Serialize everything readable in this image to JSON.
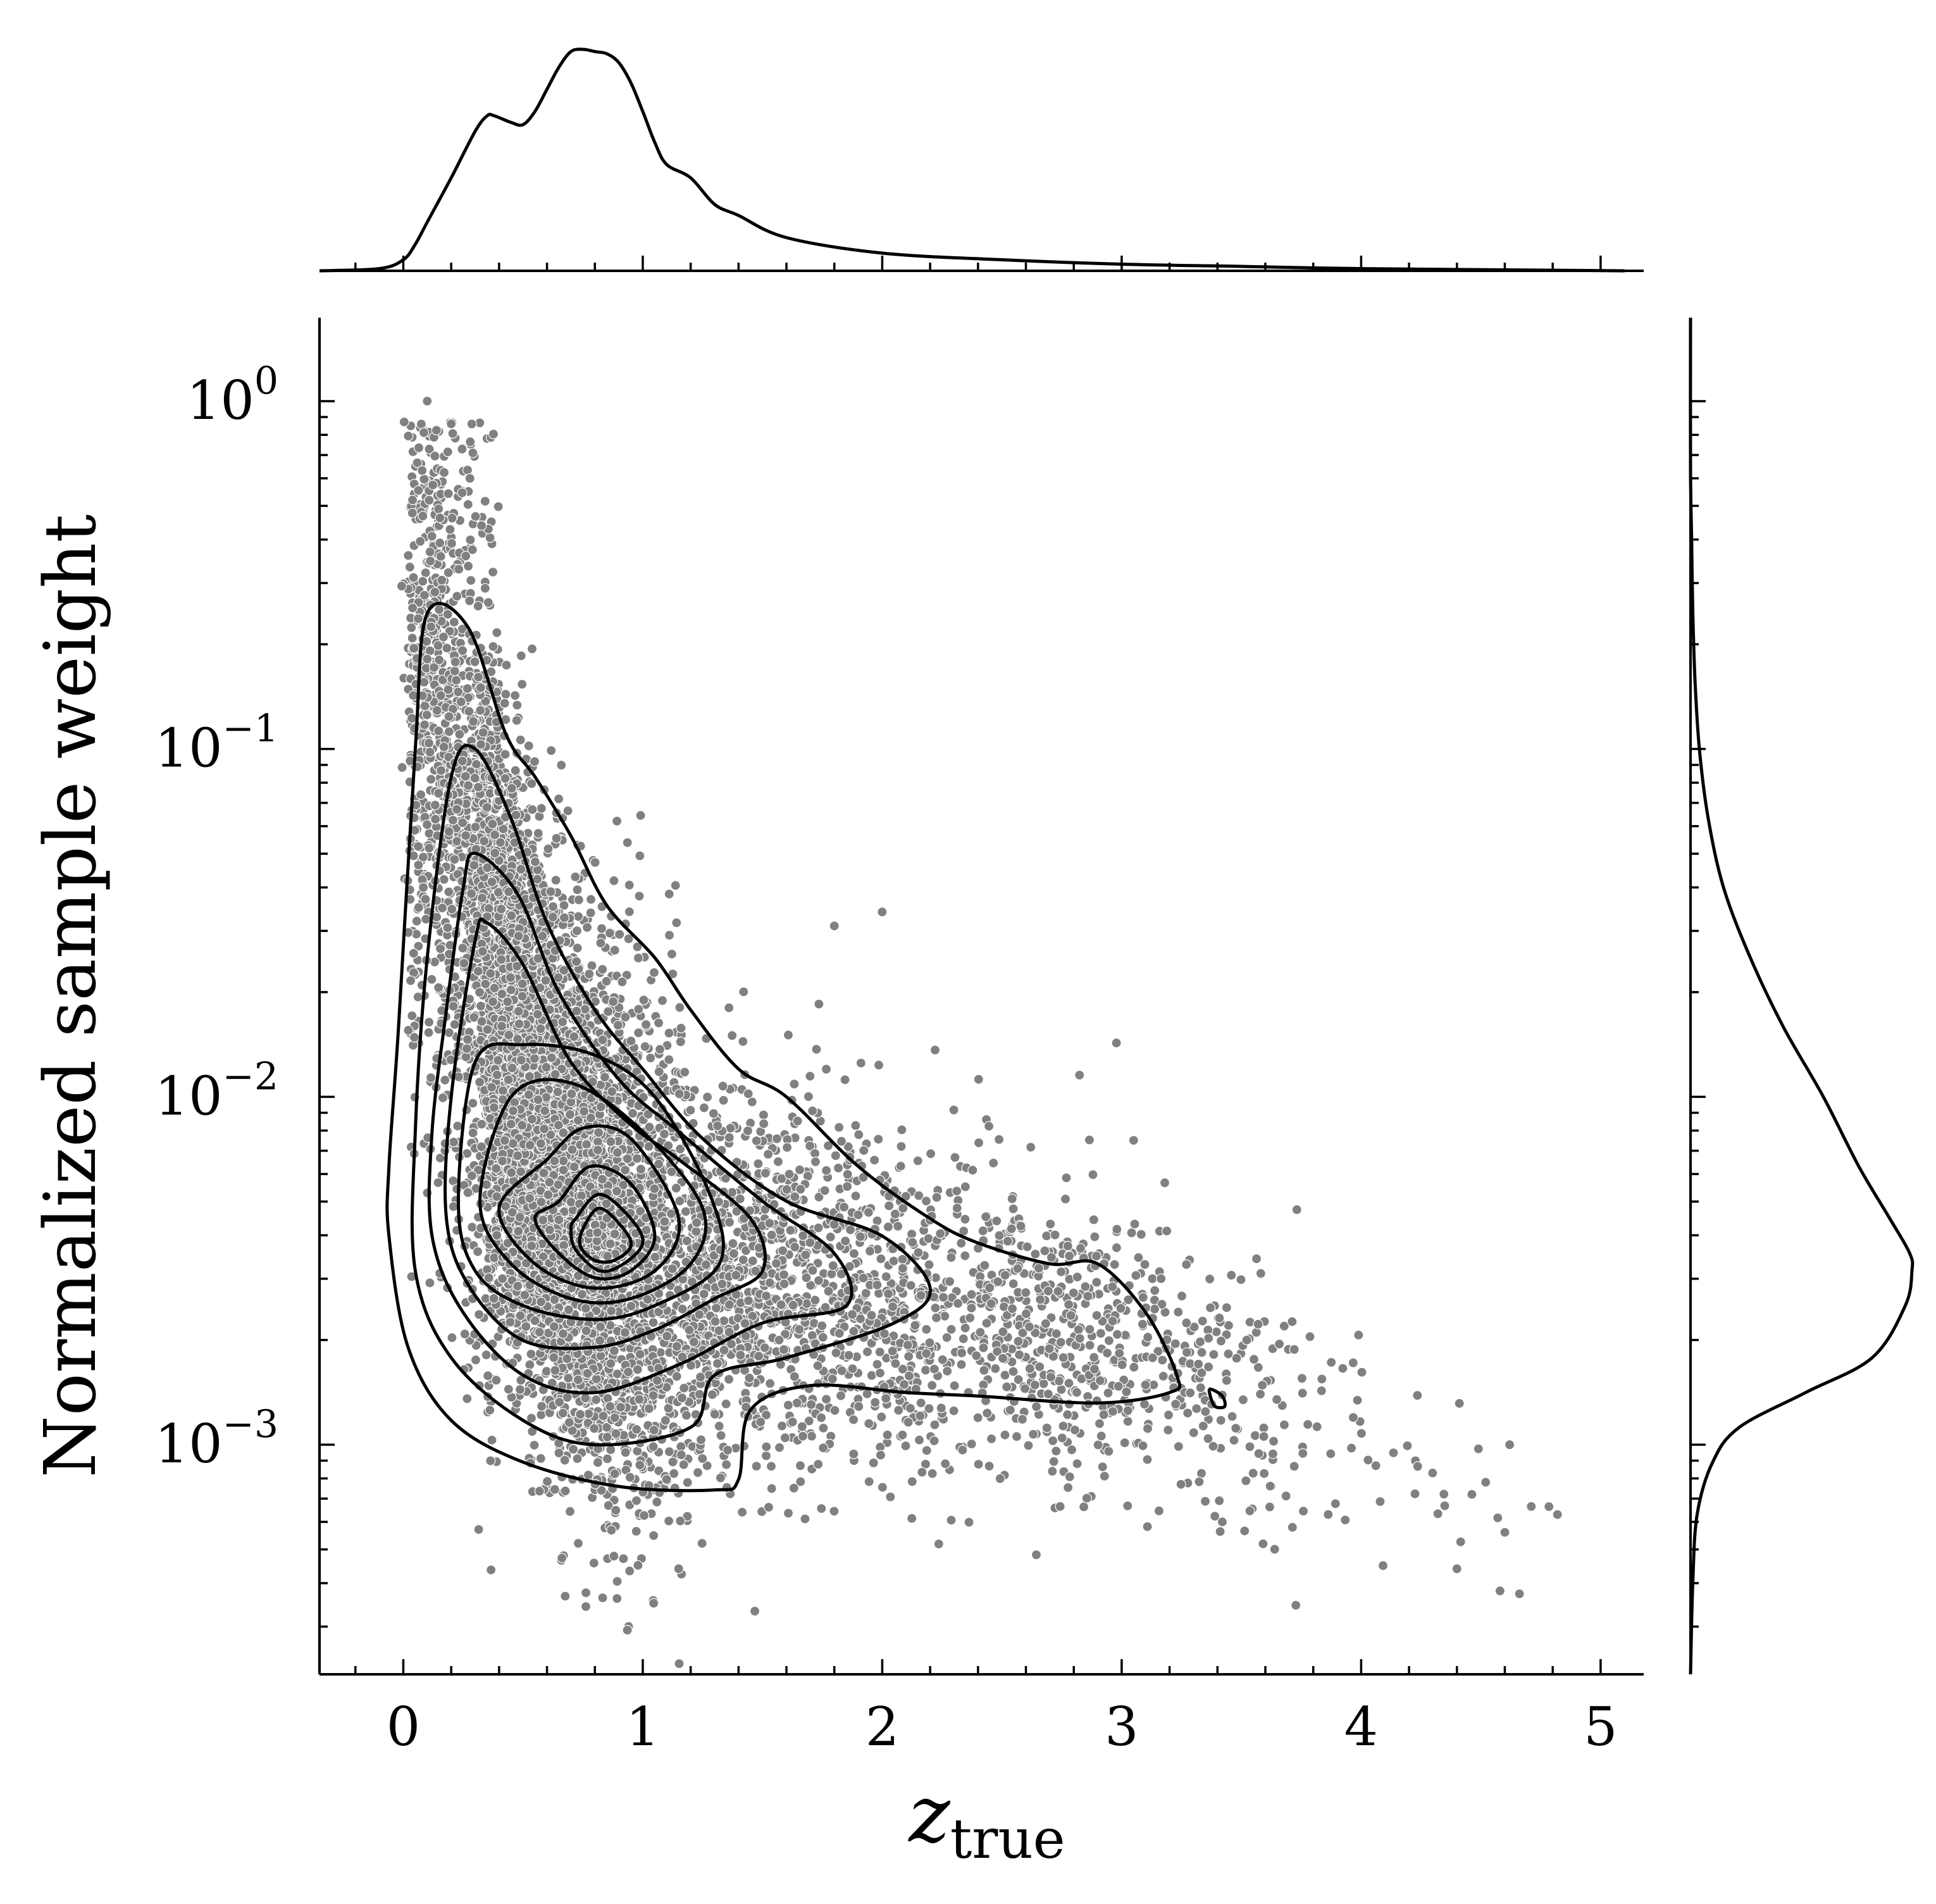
{
  "chart_data": {
    "type": "scatter",
    "title": "",
    "xlabel": {
      "main": "z",
      "subscript": "true"
    },
    "ylabel": "Normalized sample weight",
    "xlim": [
      -0.35,
      5.18
    ],
    "ylim_log10": [
      -3.66,
      0.24
    ],
    "y_scale": "log",
    "x_ticks": [
      {
        "value": 0,
        "label": "0"
      },
      {
        "value": 1,
        "label": "1"
      },
      {
        "value": 2,
        "label": "2"
      },
      {
        "value": 3,
        "label": "3"
      },
      {
        "value": 4,
        "label": "4"
      },
      {
        "value": 5,
        "label": "5"
      }
    ],
    "y_ticks": [
      {
        "exp": 0,
        "base": "10",
        "sup": "0"
      },
      {
        "exp": -1,
        "base": "10",
        "sup": "−1"
      },
      {
        "exp": -2,
        "base": "10",
        "sup": "−2"
      },
      {
        "exp": -3,
        "base": "10",
        "sup": "−3"
      }
    ],
    "marker_color": "#808080",
    "line_color": "#000000",
    "scatter_summary": {
      "approx_points": 9000,
      "ridge": [
        {
          "x": 0.1,
          "log10_y": -1.0
        },
        {
          "x": 0.3,
          "log10_y": -1.6
        },
        {
          "x": 0.6,
          "log10_y": -2.1
        },
        {
          "x": 0.85,
          "log10_y": -2.4
        },
        {
          "x": 1.2,
          "log10_y": -2.5
        },
        {
          "x": 1.7,
          "log10_y": -2.55
        },
        {
          "x": 2.3,
          "log10_y": -2.62
        },
        {
          "x": 3.0,
          "log10_y": -2.72
        },
        {
          "x": 3.6,
          "log10_y": -2.88
        },
        {
          "x": 4.2,
          "log10_y": -3.05
        },
        {
          "x": 4.7,
          "log10_y": -3.2
        }
      ],
      "outliers": [
        {
          "x": 0.1,
          "y": 1.0
        },
        {
          "x": 0.2,
          "y": 0.86
        },
        {
          "x": 2.0,
          "y": 0.034
        },
        {
          "x": 1.8,
          "y": 0.031
        },
        {
          "x": 3.05,
          "y": 0.0075
        },
        {
          "x": 4.82,
          "y": 0.00063
        },
        {
          "x": 4.58,
          "y": 0.00038
        },
        {
          "x": 4.4,
          "y": 0.00044
        },
        {
          "x": 4.6,
          "y": 0.00056
        },
        {
          "x": 4.62,
          "y": 0.001
        },
        {
          "x": 4.52,
          "y": 0.00078
        },
        {
          "x": 0.98,
          "y": 0.00045
        },
        {
          "x": 1.15,
          "y": 0.00044
        },
        {
          "x": 3.42,
          "y": 0.0006
        }
      ]
    },
    "contours_log10": [
      [
        [
          0.1,
          -0.61
        ],
        [
          0.27,
          -0.65
        ],
        [
          0.43,
          -0.96
        ],
        [
          0.55,
          -1.08
        ],
        [
          0.7,
          -1.25
        ],
        [
          0.85,
          -1.45
        ],
        [
          1.05,
          -1.6
        ],
        [
          1.2,
          -1.75
        ],
        [
          1.4,
          -1.92
        ],
        [
          1.6,
          -2.0
        ],
        [
          1.9,
          -2.2
        ],
        [
          2.2,
          -2.35
        ],
        [
          2.4,
          -2.42
        ],
        [
          2.7,
          -2.48
        ],
        [
          2.9,
          -2.48
        ],
        [
          3.1,
          -2.62
        ],
        [
          3.23,
          -2.8
        ],
        [
          3.2,
          -2.85
        ],
        [
          2.9,
          -2.88
        ],
        [
          2.4,
          -2.86
        ],
        [
          2.1,
          -2.85
        ],
        [
          1.7,
          -2.83
        ],
        [
          1.45,
          -2.9
        ],
        [
          1.4,
          -3.1
        ],
        [
          1.3,
          -3.13
        ],
        [
          0.9,
          -3.12
        ],
        [
          0.5,
          -3.05
        ],
        [
          0.2,
          -2.93
        ],
        [
          0.02,
          -2.72
        ],
        [
          -0.06,
          -2.4
        ],
        [
          -0.06,
          -2.2
        ],
        [
          -0.02,
          -1.8
        ],
        [
          0.05,
          -1.0
        ],
        [
          0.1,
          -0.61
        ]
      ],
      [
        [
          0.2,
          -1.08
        ],
        [
          0.3,
          -1.0
        ],
        [
          0.45,
          -1.2
        ],
        [
          0.6,
          -1.5
        ],
        [
          0.8,
          -1.75
        ],
        [
          1.0,
          -1.92
        ],
        [
          1.25,
          -2.12
        ],
        [
          1.6,
          -2.3
        ],
        [
          2.0,
          -2.4
        ],
        [
          2.2,
          -2.55
        ],
        [
          2.05,
          -2.65
        ],
        [
          1.6,
          -2.75
        ],
        [
          1.3,
          -2.8
        ],
        [
          1.2,
          -2.95
        ],
        [
          0.8,
          -3.0
        ],
        [
          0.5,
          -2.93
        ],
        [
          0.2,
          -2.75
        ],
        [
          0.05,
          -2.5
        ],
        [
          0.05,
          -2.1
        ],
        [
          0.1,
          -1.6
        ],
        [
          0.2,
          -1.08
        ]
      ],
      [
        [
          0.25,
          -1.4
        ],
        [
          0.3,
          -1.3
        ],
        [
          0.48,
          -1.42
        ],
        [
          0.65,
          -1.7
        ],
        [
          0.9,
          -1.95
        ],
        [
          1.15,
          -2.1
        ],
        [
          1.5,
          -2.3
        ],
        [
          1.8,
          -2.45
        ],
        [
          1.85,
          -2.6
        ],
        [
          1.5,
          -2.65
        ],
        [
          1.15,
          -2.77
        ],
        [
          0.8,
          -2.85
        ],
        [
          0.5,
          -2.8
        ],
        [
          0.25,
          -2.62
        ],
        [
          0.12,
          -2.4
        ],
        [
          0.12,
          -2.1
        ],
        [
          0.18,
          -1.75
        ],
        [
          0.25,
          -1.4
        ]
      ],
      [
        [
          0.3,
          -1.55
        ],
        [
          0.35,
          -1.5
        ],
        [
          0.5,
          -1.62
        ],
        [
          0.7,
          -1.9
        ],
        [
          0.95,
          -2.08
        ],
        [
          1.15,
          -2.18
        ],
        [
          1.45,
          -2.35
        ],
        [
          1.5,
          -2.5
        ],
        [
          1.3,
          -2.58
        ],
        [
          1.05,
          -2.67
        ],
        [
          0.8,
          -2.72
        ],
        [
          0.5,
          -2.7
        ],
        [
          0.28,
          -2.55
        ],
        [
          0.18,
          -2.35
        ],
        [
          0.2,
          -2.0
        ],
        [
          0.3,
          -1.55
        ]
      ],
      [
        [
          0.3,
          -1.9
        ],
        [
          0.5,
          -1.85
        ],
        [
          0.8,
          -1.88
        ],
        [
          1.05,
          -2.0
        ],
        [
          1.28,
          -2.28
        ],
        [
          1.32,
          -2.48
        ],
        [
          1.05,
          -2.6
        ],
        [
          0.8,
          -2.64
        ],
        [
          0.5,
          -2.6
        ],
        [
          0.3,
          -2.5
        ],
        [
          0.23,
          -2.3
        ],
        [
          0.3,
          -1.9
        ]
      ],
      [
        [
          0.45,
          -2.0
        ],
        [
          0.7,
          -1.96
        ],
        [
          1.0,
          -2.1
        ],
        [
          1.25,
          -2.32
        ],
        [
          1.2,
          -2.48
        ],
        [
          0.95,
          -2.58
        ],
        [
          0.7,
          -2.58
        ],
        [
          0.45,
          -2.48
        ],
        [
          0.32,
          -2.3
        ],
        [
          0.45,
          -2.0
        ]
      ],
      [
        [
          0.6,
          -2.18
        ],
        [
          0.75,
          -2.09
        ],
        [
          0.95,
          -2.12
        ],
        [
          1.15,
          -2.35
        ],
        [
          1.05,
          -2.5
        ],
        [
          0.8,
          -2.55
        ],
        [
          0.55,
          -2.48
        ],
        [
          0.4,
          -2.32
        ],
        [
          0.6,
          -2.18
        ]
      ],
      [
        [
          0.65,
          -2.3
        ],
        [
          0.78,
          -2.2
        ],
        [
          0.95,
          -2.25
        ],
        [
          1.05,
          -2.4
        ],
        [
          0.95,
          -2.5
        ],
        [
          0.8,
          -2.52
        ],
        [
          0.65,
          -2.45
        ],
        [
          0.55,
          -2.35
        ],
        [
          0.65,
          -2.3
        ]
      ],
      [
        [
          0.72,
          -2.35
        ],
        [
          0.82,
          -2.28
        ],
        [
          0.95,
          -2.35
        ],
        [
          1.0,
          -2.42
        ],
        [
          0.92,
          -2.48
        ],
        [
          0.82,
          -2.5
        ],
        [
          0.72,
          -2.44
        ],
        [
          0.7,
          -2.38
        ],
        [
          0.72,
          -2.35
        ]
      ],
      [
        [
          0.75,
          -2.38
        ],
        [
          0.82,
          -2.32
        ],
        [
          0.92,
          -2.38
        ],
        [
          0.95,
          -2.43
        ],
        [
          0.88,
          -2.47
        ],
        [
          0.8,
          -2.47
        ],
        [
          0.74,
          -2.43
        ],
        [
          0.75,
          -2.38
        ]
      ],
      [
        [
          3.37,
          -2.84
        ],
        [
          3.42,
          -2.86
        ],
        [
          3.43,
          -2.89
        ],
        [
          3.39,
          -2.89
        ],
        [
          3.37,
          -2.86
        ],
        [
          3.37,
          -2.84
        ]
      ]
    ],
    "x_marginal_kde": {
      "x": [
        -0.35,
        -0.1,
        0.0,
        0.05,
        0.1,
        0.2,
        0.3,
        0.35,
        0.38,
        0.45,
        0.5,
        0.55,
        0.6,
        0.65,
        0.7,
        0.75,
        0.8,
        0.85,
        0.9,
        0.95,
        1.0,
        1.05,
        1.1,
        1.2,
        1.3,
        1.4,
        1.6,
        2.0,
        2.5,
        3.0,
        3.5,
        4.0,
        5.1
      ],
      "density": [
        0.0,
        0.01,
        0.05,
        0.12,
        0.22,
        0.42,
        0.63,
        0.7,
        0.7,
        0.67,
        0.66,
        0.72,
        0.82,
        0.92,
        0.99,
        1.0,
        0.99,
        0.98,
        0.94,
        0.85,
        0.72,
        0.58,
        0.48,
        0.42,
        0.3,
        0.25,
        0.15,
        0.08,
        0.05,
        0.03,
        0.02,
        0.01,
        0.0
      ]
    },
    "y_marginal_kde": {
      "log10_y": [
        -3.66,
        -3.4,
        -3.2,
        -3.05,
        -2.95,
        -2.85,
        -2.75,
        -2.6,
        -2.5,
        -2.45,
        -2.35,
        -2.2,
        -2.0,
        -1.8,
        -1.6,
        -1.4,
        -1.2,
        -1.0,
        -0.8,
        -0.6,
        -0.4,
        -0.2,
        0.24
      ],
      "density": [
        0.0,
        0.01,
        0.03,
        0.1,
        0.22,
        0.52,
        0.82,
        0.97,
        1.0,
        0.99,
        0.9,
        0.76,
        0.6,
        0.42,
        0.27,
        0.15,
        0.08,
        0.04,
        0.02,
        0.01,
        0.005,
        0.0,
        0.0
      ]
    }
  }
}
